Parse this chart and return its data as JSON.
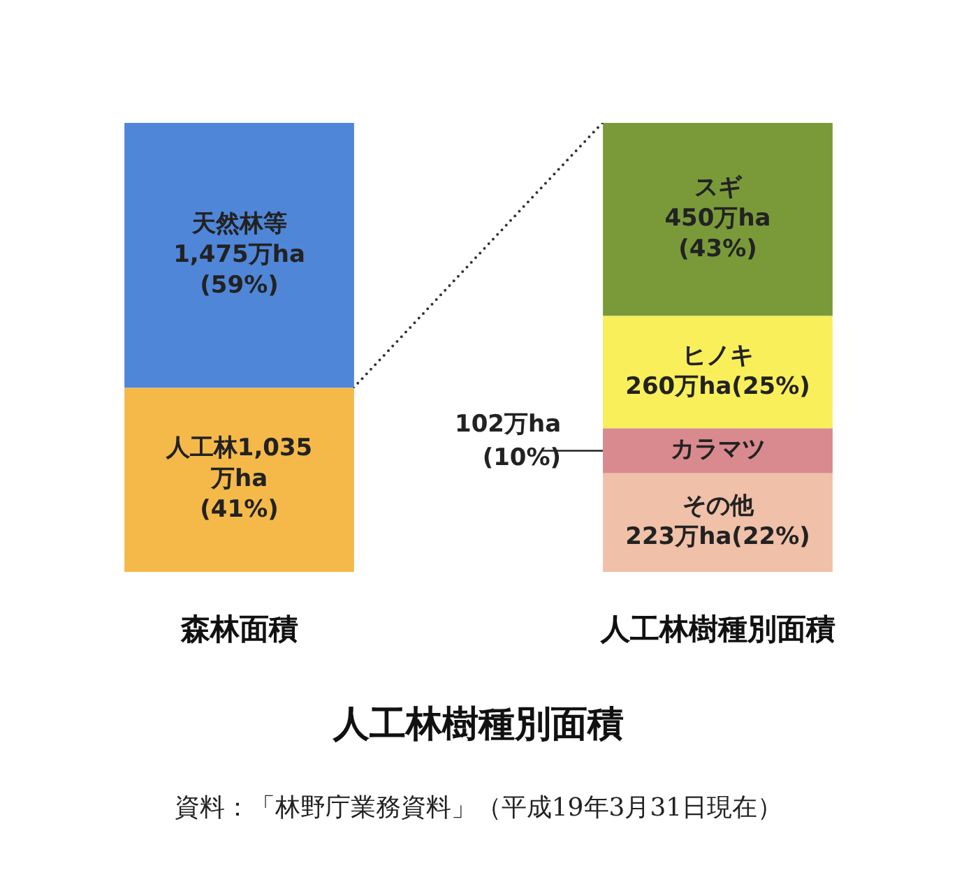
{
  "chart_data": {
    "type": "bar",
    "stacked": true,
    "title": "人工林樹種別面積",
    "categories": [
      "森林面積",
      "人工林樹種別面積"
    ],
    "ylim": [
      0,
      100
    ],
    "tick_labels": "x",
    "grid": false,
    "legend": false,
    "series": [
      {
        "color": "#f5b94a",
        "values": [
          41,
          null
        ],
        "value_labels": [
          "人工林1,035\n万ha\n(41%)",
          null
        ]
      },
      {
        "color": "#4f86d8",
        "values": [
          59,
          null
        ],
        "value_labels": [
          "天然林等\n1,475万ha\n(59%)",
          null
        ]
      },
      {
        "color": "#f0c0a8",
        "values": [
          null,
          22
        ],
        "value_labels": [
          null,
          "その他\n223万ha(22%)"
        ]
      },
      {
        "color": "#d98a8e",
        "values": [
          null,
          10
        ],
        "value_labels": [
          null,
          "カラマツ"
        ]
      },
      {
        "color": "#f8ef5a",
        "values": [
          null,
          25
        ],
        "value_labels": [
          null,
          "ヒノキ\n260万ha(25%)"
        ]
      },
      {
        "color": "#7a9a3a",
        "values": [
          null,
          43
        ],
        "value_labels": [
          null,
          "スギ\n450万ha\n(43%)"
        ]
      }
    ],
    "annotations": [
      "102万ha\n(10%)",
      "資料：「林野庁業務資料」（平成19年3月31日現在）"
    ]
  }
}
